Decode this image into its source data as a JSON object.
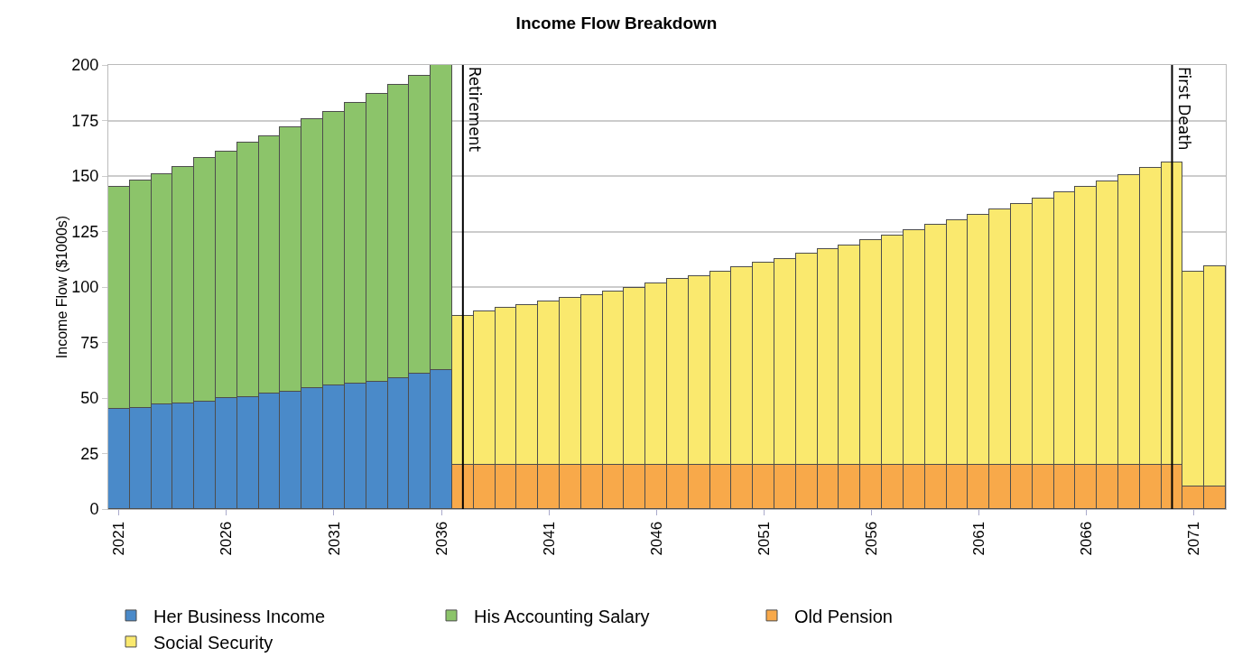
{
  "chart_data": {
    "type": "bar",
    "title": "Income Flow Breakdown",
    "ylabel": "Income Flow ($1000s)",
    "stacked": true,
    "x": [
      2021,
      2022,
      2023,
      2024,
      2025,
      2026,
      2027,
      2028,
      2029,
      2030,
      2031,
      2032,
      2033,
      2034,
      2035,
      2036,
      2037,
      2038,
      2039,
      2040,
      2041,
      2042,
      2043,
      2044,
      2045,
      2046,
      2047,
      2048,
      2049,
      2050,
      2051,
      2052,
      2053,
      2054,
      2055,
      2056,
      2057,
      2058,
      2059,
      2060,
      2061,
      2062,
      2063,
      2064,
      2065,
      2066,
      2067,
      2068,
      2069,
      2070,
      2071,
      2072
    ],
    "series": [
      {
        "name": "Her Business Income",
        "color": "#4a8ac9",
        "values": [
          45,
          45.5,
          47,
          47.5,
          48.5,
          50,
          50.5,
          52,
          53,
          54.5,
          55.5,
          56.5,
          57.5,
          59,
          61,
          62.5,
          null,
          null,
          null,
          null,
          null,
          null,
          null,
          null,
          null,
          null,
          null,
          null,
          null,
          null,
          null,
          null,
          null,
          null,
          null,
          null,
          null,
          null,
          null,
          null,
          null,
          null,
          null,
          null,
          null,
          null,
          null,
          null,
          null,
          null,
          null,
          null
        ]
      },
      {
        "name": "His Accounting Salary",
        "color": "#8cc46a",
        "values": [
          100,
          102.5,
          104,
          106.5,
          109.5,
          111,
          114.5,
          116,
          119,
          121,
          123.5,
          126.5,
          129.5,
          132,
          134,
          137.5,
          null,
          null,
          null,
          null,
          null,
          null,
          null,
          null,
          null,
          null,
          null,
          null,
          null,
          null,
          null,
          null,
          null,
          null,
          null,
          null,
          null,
          null,
          null,
          null,
          null,
          null,
          null,
          null,
          null,
          null,
          null,
          null,
          null,
          null,
          null,
          null
        ]
      },
      {
        "name": "Old Pension",
        "color": "#f8a94a",
        "values": [
          null,
          null,
          null,
          null,
          null,
          null,
          null,
          null,
          null,
          null,
          null,
          null,
          null,
          null,
          null,
          null,
          20,
          20,
          20,
          20,
          20,
          20,
          20,
          20,
          20,
          20,
          20,
          20,
          20,
          20,
          20,
          20,
          20,
          20,
          20,
          20,
          20,
          20,
          20,
          20,
          20,
          20,
          20,
          20,
          20,
          20,
          20,
          20,
          20,
          20,
          10,
          10
        ]
      },
      {
        "name": "Social Security",
        "color": "#fae96e",
        "values": [
          null,
          null,
          null,
          null,
          null,
          null,
          null,
          null,
          null,
          null,
          null,
          null,
          null,
          null,
          null,
          null,
          67,
          69,
          70.5,
          72,
          73.5,
          75,
          76.5,
          78,
          79.5,
          81.5,
          83.5,
          85,
          87,
          89,
          91,
          92.5,
          95,
          97,
          98.5,
          101,
          103,
          105.5,
          108,
          110,
          112.5,
          115,
          117.5,
          120,
          122.5,
          125,
          127.5,
          130.5,
          133.5,
          136,
          97,
          99.5
        ]
      }
    ],
    "xlim": [
      2020.5,
      2072.5
    ],
    "xticks": [
      2021,
      2026,
      2031,
      2036,
      2041,
      2046,
      2051,
      2056,
      2061,
      2066,
      2071
    ],
    "ylim": [
      0,
      200
    ],
    "yticks": [
      0,
      25,
      50,
      75,
      100,
      125,
      150,
      175,
      200
    ],
    "grid": "y",
    "legend": "bottom",
    "ref_lines": [
      {
        "axis": "x",
        "value": 2037,
        "label": "Retirement",
        "color": "#000000"
      },
      {
        "axis": "x",
        "value": 2070,
        "label": "First Death",
        "color": "#000000"
      }
    ]
  }
}
